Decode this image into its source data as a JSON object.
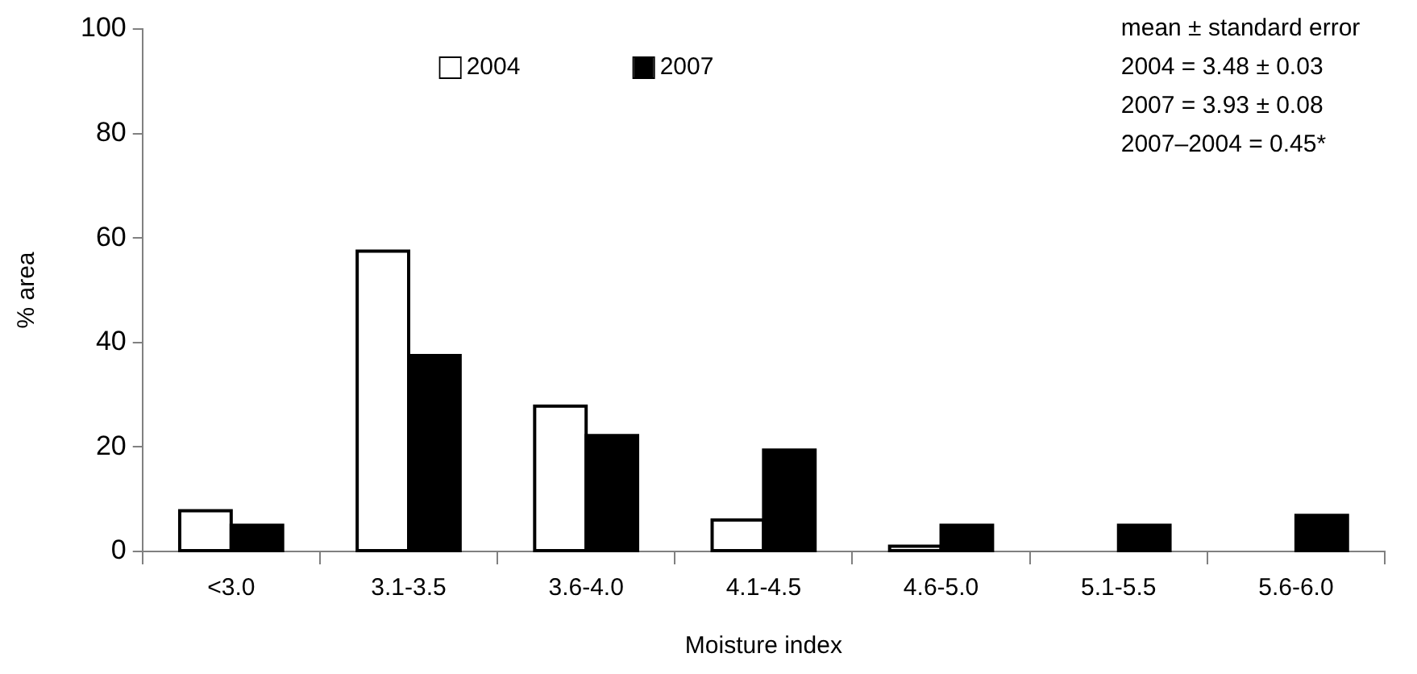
{
  "chart_data": {
    "type": "bar",
    "xlabel": "Moisture index",
    "ylabel": "% area",
    "categories": [
      "<3.0",
      "3.1-3.5",
      "3.6-4.0",
      "4.1-4.5",
      "4.6-5.0",
      "5.1-5.5",
      "5.6-6.0"
    ],
    "series": [
      {
        "name": "2004",
        "color": "#ffffff",
        "values": [
          7.8,
          57.5,
          27.8,
          6,
          1,
          0,
          0
        ]
      },
      {
        "name": "2007",
        "color": "#000000",
        "values": [
          5,
          37.5,
          22.2,
          19.4,
          5,
          5,
          6.9
        ]
      }
    ],
    "ylim": [
      0,
      100
    ],
    "yticks": [
      0,
      20,
      40,
      60,
      80,
      100
    ],
    "grid": false,
    "legend": "top",
    "annotations": [
      "mean ± standard error",
      "2004 = 3.48 ± 0.03",
      "2007 = 3.93 ± 0.08",
      "2007–2004 = 0.45*"
    ]
  }
}
